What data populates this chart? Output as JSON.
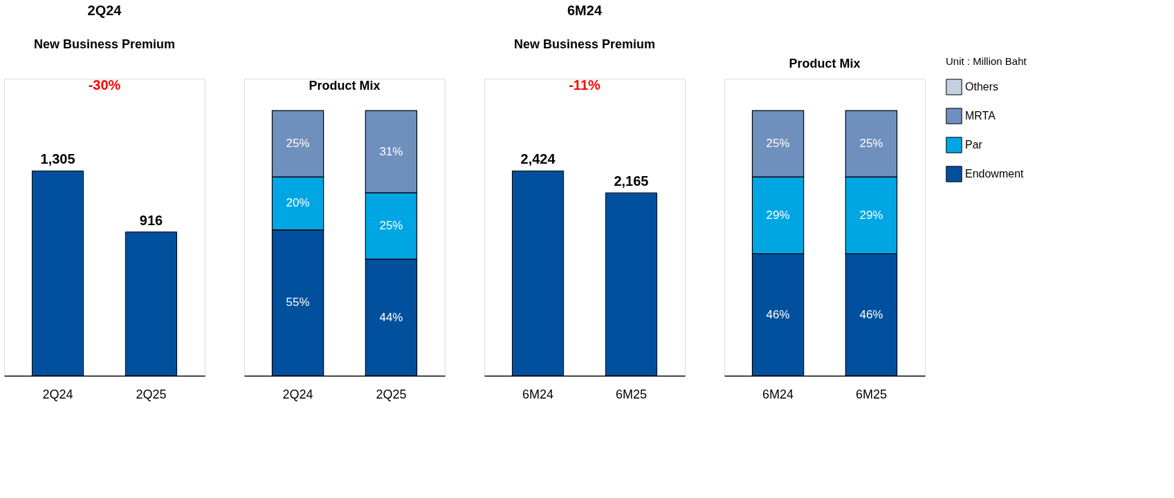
{
  "chart_data": [
    {
      "type": "bar",
      "title": "2Q24",
      "subtitle": "New Business Premium",
      "categories": [
        "2Q24",
        "2Q25"
      ],
      "values": [
        1305,
        916
      ],
      "value_labels": [
        "1,305",
        "916"
      ],
      "color": "#00509e",
      "annotations": [
        "-30%"
      ]
    },
    {
      "type": "bar",
      "title": "Product Mix",
      "categories": [
        "2Q24",
        "2Q25"
      ],
      "stacked": true,
      "series": [
        {
          "color": "#00509e",
          "values": [
            55,
            44
          ],
          "value_labels": [
            "55%",
            "44%"
          ]
        },
        {
          "color": "#00a6e4",
          "values": [
            20,
            25
          ],
          "value_labels": [
            "20%",
            "25%"
          ]
        },
        {
          "color": "#6f8fbd",
          "values": [
            25,
            31
          ],
          "value_labels": [
            "25%",
            "31%"
          ]
        }
      ]
    },
    {
      "type": "bar",
      "title": "6M24",
      "subtitle": "New Business Premium",
      "categories": [
        "6M24",
        "6M25"
      ],
      "values": [
        2424,
        2165
      ],
      "value_labels": [
        "2,424",
        "2,165"
      ],
      "color": "#00509e",
      "annotations": [
        "-11%"
      ]
    },
    {
      "type": "bar",
      "title": "Product Mix",
      "categories": [
        "6M24",
        "6M25"
      ],
      "stacked": true,
      "legend": "right",
      "annotations": [
        "Unit : Million Baht"
      ],
      "series": [
        {
          "name": "Endowment",
          "color": "#00509e",
          "values": [
            46,
            46
          ],
          "value_labels": [
            "46%",
            "46%"
          ]
        },
        {
          "name": "Par",
          "color": "#00a6e4",
          "values": [
            29,
            29
          ],
          "value_labels": [
            "29%",
            "29%"
          ]
        },
        {
          "name": "MRTA",
          "color": "#6f8fbd",
          "values": [
            25,
            25
          ],
          "value_labels": [
            "25%",
            "25%"
          ]
        },
        {
          "name": "Others",
          "color": "#c5d0e3",
          "values": [
            null,
            null
          ]
        }
      ]
    }
  ]
}
